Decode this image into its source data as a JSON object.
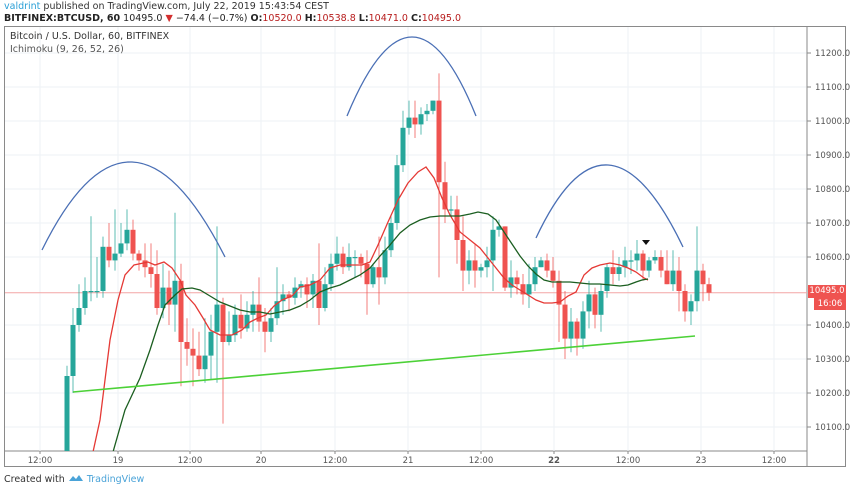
{
  "header": {
    "user": "valdrint",
    "published": " published on TradingView.com, July 22, 2019 15:43:54 CEST",
    "symbol": "BITFINEX:BTCUSD, 60",
    "last": "10495.0",
    "arrow": "▼",
    "change": "−74.4 (−0.7%)",
    "o_label": "O:",
    "o_val": "10520.0",
    "h_label": "H:",
    "h_val": "10538.8",
    "l_label": "L:",
    "l_val": "10471.0",
    "c_label": "C:",
    "c_val": "10495.0"
  },
  "legend": {
    "title": "Bitcoin / U.S. Dollar, 60, BITFINEX",
    "indicator": "Ichimoku (9, 26, 52, 26)"
  },
  "price_tag": {
    "value": "10495.0",
    "countdown": "16:06",
    "color": "#ef5350"
  },
  "footer": {
    "created": "Created with ",
    "brand": "TradingView",
    "logo_icon": "tradingview-logo-icon"
  },
  "colors": {
    "up": "#26a69a",
    "down": "#ef5350",
    "conversion": "#e53935",
    "base": "#1b5e20",
    "trendline": "#4cd137",
    "arcs": "#4a6fb5",
    "grid": "#eef2f5",
    "lastline": "#f4a5a5"
  },
  "chart_data": {
    "type": "candlestick",
    "title": "Bitcoin / U.S. Dollar, 60, BITFINEX",
    "xlabel": "",
    "ylabel": "",
    "ylim": [
      10050,
      11280
    ],
    "y_ticks": [
      "11200.0",
      "11100.0",
      "11000.0",
      "10900.0",
      "10800.0",
      "10700.0",
      "10600.0",
      "10400.0",
      "10300.0",
      "10200.0",
      "10100.0"
    ],
    "y_tick_values": [
      11200,
      11100,
      11000,
      10900,
      10800,
      10700,
      10600,
      10400,
      10300,
      10200,
      10100
    ],
    "x_ticks": [
      {
        "label": "12:00",
        "x": 40,
        "bold": false
      },
      {
        "label": "19",
        "x": 118,
        "bold": false
      },
      {
        "label": "12:00",
        "x": 190,
        "bold": false
      },
      {
        "label": "20",
        "x": 261,
        "bold": false
      },
      {
        "label": "12:00",
        "x": 335,
        "bold": false
      },
      {
        "label": "21",
        "x": 408,
        "bold": false
      },
      {
        "label": "12:00",
        "x": 481,
        "bold": false
      },
      {
        "label": "22",
        "x": 554,
        "bold": true
      },
      {
        "label": "12:00",
        "x": 628,
        "bold": false
      },
      {
        "label": "23",
        "x": 701,
        "bold": false
      },
      {
        "label": "12:00",
        "x": 774,
        "bold": false
      }
    ],
    "last_price": 10495.0,
    "candles_x_start": 67,
    "candles_x_step": 6.0,
    "candles": [
      [
        9900,
        10250,
        9900,
        10280
      ],
      [
        10250,
        10400,
        10200,
        10450
      ],
      [
        10400,
        10450,
        10380,
        10520
      ],
      [
        10450,
        10500,
        10430,
        10540
      ],
      [
        10500,
        10500,
        10470,
        10720
      ],
      [
        10500,
        10500,
        10480,
        10600
      ],
      [
        10500,
        10630,
        10480,
        10660
      ],
      [
        10630,
        10590,
        10570,
        10700
      ],
      [
        10590,
        10610,
        10560,
        10740
      ],
      [
        10610,
        10640,
        10600,
        10700
      ],
      [
        10640,
        10680,
        10620,
        10740
      ],
      [
        10680,
        10610,
        10590,
        10710
      ],
      [
        10610,
        10590,
        10560,
        10620
      ],
      [
        10590,
        10570,
        10540,
        10640
      ],
      [
        10570,
        10550,
        10510,
        10640
      ],
      [
        10550,
        10450,
        10430,
        10620
      ],
      [
        10450,
        10510,
        10420,
        10580
      ],
      [
        10510,
        10460,
        10400,
        10560
      ],
      [
        10460,
        10530,
        10380,
        10730
      ],
      [
        10530,
        10350,
        10220,
        10580
      ],
      [
        10350,
        10330,
        10280,
        10420
      ],
      [
        10330,
        10310,
        10220,
        10390
      ],
      [
        10310,
        10270,
        10250,
        10380
      ],
      [
        10270,
        10310,
        10230,
        10420
      ],
      [
        10310,
        10380,
        10240,
        10430
      ],
      [
        10380,
        10460,
        10230,
        10690
      ],
      [
        10460,
        10350,
        10110,
        10480
      ],
      [
        10350,
        10370,
        10340,
        10440
      ],
      [
        10370,
        10430,
        10350,
        10460
      ],
      [
        10430,
        10390,
        10360,
        10490
      ],
      [
        10390,
        10430,
        10380,
        10470
      ],
      [
        10430,
        10460,
        10380,
        10500
      ],
      [
        10460,
        10410,
        10380,
        10540
      ],
      [
        10410,
        10380,
        10320,
        10450
      ],
      [
        10380,
        10420,
        10350,
        10450
      ],
      [
        10420,
        10470,
        10400,
        10570
      ],
      [
        10470,
        10490,
        10430,
        10520
      ],
      [
        10490,
        10480,
        10440,
        10500
      ],
      [
        10480,
        10510,
        10460,
        10540
      ],
      [
        10510,
        10520,
        10480,
        10530
      ],
      [
        10520,
        10490,
        10450,
        10540
      ],
      [
        10490,
        10530,
        10450,
        10550
      ],
      [
        10530,
        10450,
        10400,
        10640
      ],
      [
        10450,
        10520,
        10440,
        10570
      ],
      [
        10520,
        10580,
        10500,
        10610
      ],
      [
        10580,
        10610,
        10560,
        10660
      ],
      [
        10610,
        10570,
        10550,
        10630
      ],
      [
        10570,
        10600,
        10560,
        10640
      ],
      [
        10600,
        10600,
        10540,
        10620
      ],
      [
        10600,
        10580,
        10540,
        10610
      ],
      [
        10580,
        10520,
        10430,
        10620
      ],
      [
        10520,
        10570,
        10510,
        10580
      ],
      [
        10570,
        10540,
        10460,
        10660
      ],
      [
        10540,
        10620,
        10520,
        10660
      ],
      [
        10620,
        10700,
        10600,
        10720
      ],
      [
        10700,
        10870,
        10680,
        10900
      ],
      [
        10870,
        10980,
        10850,
        11030
      ],
      [
        10980,
        11010,
        10960,
        11060
      ],
      [
        11010,
        10990,
        10950,
        11060
      ],
      [
        10990,
        11020,
        10960,
        11040
      ],
      [
        11020,
        11030,
        11000,
        11050
      ],
      [
        11030,
        11060,
        11020,
        11060
      ],
      [
        11060,
        10820,
        10540,
        11140
      ],
      [
        10820,
        10740,
        10700,
        10880
      ],
      [
        10740,
        10740,
        10720,
        10780
      ],
      [
        10740,
        10650,
        10580,
        10780
      ],
      [
        10650,
        10560,
        10500,
        10720
      ],
      [
        10560,
        10590,
        10520,
        10620
      ],
      [
        10590,
        10560,
        10510,
        10640
      ],
      [
        10560,
        10570,
        10540,
        10580
      ],
      [
        10570,
        10590,
        10540,
        10630
      ],
      [
        10590,
        10680,
        10500,
        10720
      ],
      [
        10680,
        10690,
        10660,
        10710
      ],
      [
        10690,
        10510,
        10500,
        10690
      ],
      [
        10510,
        10540,
        10480,
        10590
      ],
      [
        10540,
        10520,
        10490,
        10560
      ],
      [
        10520,
        10490,
        10460,
        10550
      ],
      [
        10490,
        10520,
        10450,
        10580
      ],
      [
        10520,
        10570,
        10500,
        10600
      ],
      [
        10570,
        10590,
        10570,
        10600
      ],
      [
        10590,
        10560,
        10540,
        10610
      ],
      [
        10560,
        10530,
        10510,
        10600
      ],
      [
        10530,
        10460,
        10350,
        10560
      ],
      [
        10460,
        10360,
        10300,
        10500
      ],
      [
        10360,
        10410,
        10320,
        10450
      ],
      [
        10410,
        10360,
        10310,
        10420
      ],
      [
        10360,
        10440,
        10330,
        10470
      ],
      [
        10440,
        10490,
        10390,
        10530
      ],
      [
        10490,
        10430,
        10390,
        10510
      ],
      [
        10430,
        10500,
        10380,
        10520
      ],
      [
        10500,
        10570,
        10480,
        10580
      ],
      [
        10570,
        10550,
        10520,
        10620
      ],
      [
        10550,
        10570,
        10530,
        10600
      ],
      [
        10570,
        10590,
        10540,
        10630
      ],
      [
        10590,
        10590,
        10550,
        10620
      ],
      [
        10590,
        10610,
        10560,
        10650
      ],
      [
        10610,
        10560,
        10530,
        10620
      ],
      [
        10560,
        10590,
        10540,
        10600
      ],
      [
        10590,
        10600,
        10580,
        10620
      ],
      [
        10600,
        10560,
        10540,
        10620
      ],
      [
        10560,
        10520,
        10520,
        10620
      ],
      [
        10520,
        10560,
        10500,
        10620
      ],
      [
        10560,
        10500,
        10440,
        10600
      ],
      [
        10500,
        10440,
        10410,
        10520
      ],
      [
        10440,
        10470,
        10400,
        10490
      ],
      [
        10470,
        10560,
        10440,
        10690
      ],
      [
        10560,
        10520,
        10470,
        10580
      ],
      [
        10520,
        10495,
        10471,
        10539
      ]
    ],
    "series": [
      {
        "name": "Conversion Line (9)",
        "color": "#e53935",
        "points": [
          [
            93,
            452
          ],
          [
            100,
            420
          ],
          [
            110,
            340
          ],
          [
            118,
            300
          ],
          [
            125,
            275
          ],
          [
            134,
            265
          ],
          [
            148,
            262
          ],
          [
            155,
            265
          ],
          [
            164,
            262
          ],
          [
            172,
            268
          ],
          [
            180,
            280
          ],
          [
            186,
            295
          ],
          [
            195,
            305
          ],
          [
            203,
            318
          ],
          [
            210,
            330
          ],
          [
            220,
            335
          ],
          [
            232,
            335
          ],
          [
            242,
            330
          ],
          [
            250,
            322
          ],
          [
            258,
            318
          ],
          [
            266,
            315
          ],
          [
            274,
            306
          ],
          [
            282,
            300
          ],
          [
            292,
            296
          ],
          [
            300,
            287
          ],
          [
            310,
            285
          ],
          [
            320,
            280
          ],
          [
            330,
            268
          ],
          [
            340,
            265
          ],
          [
            352,
            265
          ],
          [
            362,
            265
          ],
          [
            370,
            262
          ],
          [
            378,
            245
          ],
          [
            388,
            222
          ],
          [
            398,
            200
          ],
          [
            408,
            183
          ],
          [
            418,
            172
          ],
          [
            426,
            167
          ],
          [
            434,
            178
          ],
          [
            442,
            198
          ],
          [
            450,
            215
          ],
          [
            460,
            232
          ],
          [
            470,
            240
          ],
          [
            480,
            248
          ],
          [
            488,
            258
          ],
          [
            496,
            268
          ],
          [
            504,
            278
          ],
          [
            512,
            285
          ],
          [
            520,
            290
          ],
          [
            528,
            295
          ],
          [
            536,
            300
          ],
          [
            544,
            303
          ],
          [
            552,
            303
          ],
          [
            560,
            302
          ],
          [
            568,
            296
          ],
          [
            576,
            292
          ],
          [
            584,
            275
          ],
          [
            592,
            268
          ],
          [
            600,
            265
          ],
          [
            610,
            263
          ],
          [
            620,
            265
          ],
          [
            628,
            268
          ],
          [
            636,
            272
          ],
          [
            644,
            278
          ],
          [
            648,
            280
          ]
        ]
      },
      {
        "name": "Base Line (26)",
        "color": "#1b5e20",
        "points": [
          [
            113,
            452
          ],
          [
            125,
            410
          ],
          [
            140,
            378
          ],
          [
            150,
            350
          ],
          [
            158,
            325
          ],
          [
            165,
            305
          ],
          [
            175,
            295
          ],
          [
            182,
            289
          ],
          [
            192,
            288
          ],
          [
            200,
            290
          ],
          [
            210,
            296
          ],
          [
            220,
            302
          ],
          [
            230,
            306
          ],
          [
            240,
            310
          ],
          [
            250,
            312
          ],
          [
            260,
            312
          ],
          [
            270,
            314
          ],
          [
            280,
            312
          ],
          [
            290,
            310
          ],
          [
            300,
            306
          ],
          [
            310,
            300
          ],
          [
            320,
            292
          ],
          [
            330,
            288
          ],
          [
            340,
            285
          ],
          [
            350,
            280
          ],
          [
            360,
            275
          ],
          [
            370,
            268
          ],
          [
            380,
            256
          ],
          [
            390,
            245
          ],
          [
            400,
            233
          ],
          [
            410,
            225
          ],
          [
            420,
            220
          ],
          [
            430,
            217
          ],
          [
            440,
            216
          ],
          [
            450,
            216
          ],
          [
            460,
            216
          ],
          [
            470,
            214
          ],
          [
            478,
            212
          ],
          [
            488,
            214
          ],
          [
            496,
            220
          ],
          [
            504,
            232
          ],
          [
            512,
            244
          ],
          [
            520,
            256
          ],
          [
            528,
            266
          ],
          [
            536,
            274
          ],
          [
            544,
            280
          ],
          [
            552,
            282
          ],
          [
            560,
            282
          ],
          [
            570,
            282
          ],
          [
            580,
            283
          ],
          [
            590,
            284
          ],
          [
            600,
            284
          ],
          [
            610,
            285
          ],
          [
            620,
            286
          ],
          [
            628,
            285
          ],
          [
            636,
            282
          ],
          [
            642,
            280
          ],
          [
            648,
            279
          ]
        ]
      }
    ],
    "annotations": [
      {
        "type": "arc",
        "label": "left-shoulder",
        "x1": 42,
        "y1": 250,
        "x2": 225,
        "y2": 257,
        "peak_x": 132,
        "peak_y": 162
      },
      {
        "type": "arc",
        "label": "head",
        "x1": 347,
        "y1": 116,
        "x2": 476,
        "y2": 116,
        "peak_x": 412,
        "peak_y": 37
      },
      {
        "type": "arc",
        "label": "right-shoulder",
        "x1": 536,
        "y1": 238,
        "x2": 683,
        "y2": 247,
        "peak_x": 608,
        "peak_y": 165
      },
      {
        "type": "trendline",
        "label": "neckline",
        "x1": 73,
        "y1": 392,
        "x2": 695,
        "y2": 336
      },
      {
        "type": "marker",
        "label": "down-arrow",
        "x": 646,
        "y": 242
      }
    ]
  }
}
